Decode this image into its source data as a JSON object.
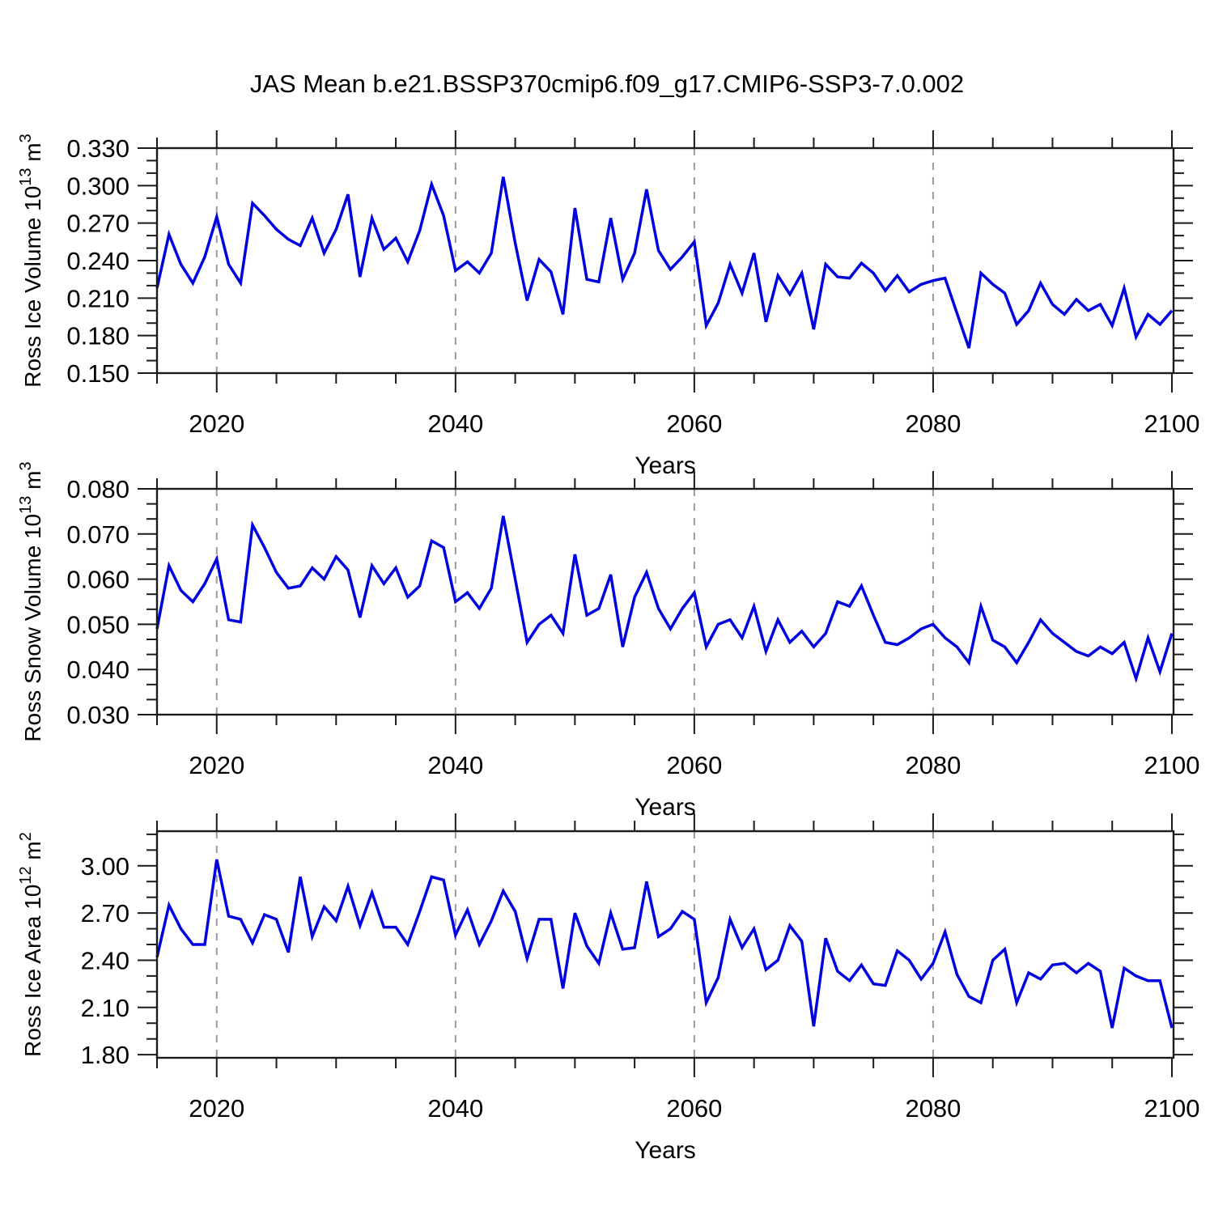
{
  "title": "JAS Mean b.e21.BSSP370cmip6.f09_g17.CMIP6-SSP3-7.0.002",
  "colors": {
    "line": "#0000e0",
    "grid": "#9a9a9a",
    "axis": "#1a1a1a",
    "text": "#000000"
  },
  "x_axis": {
    "label": "Years",
    "start": 2015,
    "end": 2100,
    "major_ticks": [
      2020,
      2040,
      2060,
      2080,
      2100
    ],
    "minor_step": 5,
    "gridline_years": [
      2020,
      2040,
      2060,
      2080
    ],
    "years": [
      2015,
      2016,
      2017,
      2018,
      2019,
      2020,
      2021,
      2022,
      2023,
      2024,
      2025,
      2026,
      2027,
      2028,
      2029,
      2030,
      2031,
      2032,
      2033,
      2034,
      2035,
      2036,
      2037,
      2038,
      2039,
      2040,
      2041,
      2042,
      2043,
      2044,
      2045,
      2046,
      2047,
      2048,
      2049,
      2050,
      2051,
      2052,
      2053,
      2054,
      2055,
      2056,
      2057,
      2058,
      2059,
      2060,
      2061,
      2062,
      2063,
      2064,
      2065,
      2066,
      2067,
      2068,
      2069,
      2070,
      2071,
      2072,
      2073,
      2074,
      2075,
      2076,
      2077,
      2078,
      2079,
      2080,
      2081,
      2082,
      2083,
      2084,
      2085,
      2086,
      2087,
      2088,
      2089,
      2090,
      2091,
      2092,
      2093,
      2094,
      2095,
      2096,
      2097,
      2098,
      2099,
      2100
    ]
  },
  "chart_data": [
    {
      "type": "line",
      "name": "ross-ice-volume",
      "ylabel_text": "Ross Ice Volume 10¹³ m³",
      "ylabel_parts": [
        {
          "t": "Ross Ice Volume 10"
        },
        {
          "t": "13",
          "sup": true
        },
        {
          "t": " m"
        },
        {
          "t": "3",
          "sup": true
        }
      ],
      "xlabel": "Years",
      "ylim": [
        0.15,
        0.33
      ],
      "ytick_values": [
        0.15,
        0.18,
        0.21,
        0.24,
        0.27,
        0.3,
        0.33
      ],
      "ytick_labels": [
        "0.150",
        "0.180",
        "0.210",
        "0.240",
        "0.270",
        "0.300",
        "0.330"
      ],
      "y_minor_step": 0.01,
      "values": [
        0.218,
        0.261,
        0.237,
        0.222,
        0.243,
        0.275,
        0.237,
        0.222,
        0.286,
        0.276,
        0.265,
        0.257,
        0.252,
        0.274,
        0.246,
        0.265,
        0.293,
        0.227,
        0.274,
        0.249,
        0.258,
        0.239,
        0.264,
        0.301,
        0.276,
        0.232,
        0.239,
        0.23,
        0.246,
        0.307,
        0.254,
        0.208,
        0.241,
        0.231,
        0.197,
        0.282,
        0.225,
        0.223,
        0.274,
        0.225,
        0.246,
        0.297,
        0.248,
        0.233,
        0.243,
        0.255,
        0.188,
        0.206,
        0.237,
        0.214,
        0.246,
        0.191,
        0.228,
        0.213,
        0.23,
        0.185,
        0.237,
        0.227,
        0.226,
        0.238,
        0.23,
        0.216,
        0.228,
        0.215,
        0.221,
        0.224,
        0.226,
        0.198,
        0.17,
        0.23,
        0.221,
        0.214,
        0.189,
        0.2,
        0.222,
        0.205,
        0.197,
        0.209,
        0.2,
        0.205,
        0.188,
        0.218,
        0.179,
        0.197,
        0.189,
        0.2
      ]
    },
    {
      "type": "line",
      "name": "ross-snow-volume",
      "ylabel_text": "Ross Snow Volume 10¹³ m³",
      "ylabel_parts": [
        {
          "t": "Ross Snow Volume 10"
        },
        {
          "t": "13",
          "sup": true
        },
        {
          "t": " m"
        },
        {
          "t": "3",
          "sup": true
        }
      ],
      "xlabel": "Years",
      "ylim": [
        0.03,
        0.08
      ],
      "ytick_values": [
        0.03,
        0.04,
        0.05,
        0.06,
        0.07,
        0.08
      ],
      "ytick_labels": [
        "0.030",
        "0.040",
        "0.050",
        "0.060",
        "0.070",
        "0.080"
      ],
      "y_minor_step": 0.0033333,
      "values": [
        0.049,
        0.063,
        0.0575,
        0.055,
        0.059,
        0.0645,
        0.051,
        0.0505,
        0.072,
        0.067,
        0.0615,
        0.058,
        0.0585,
        0.0625,
        0.06,
        0.065,
        0.062,
        0.0515,
        0.063,
        0.059,
        0.0625,
        0.056,
        0.0585,
        0.0685,
        0.067,
        0.055,
        0.057,
        0.0535,
        0.058,
        0.074,
        0.06,
        0.046,
        0.05,
        0.052,
        0.048,
        0.0655,
        0.052,
        0.0535,
        0.061,
        0.045,
        0.056,
        0.0615,
        0.0535,
        0.049,
        0.0535,
        0.057,
        0.045,
        0.05,
        0.051,
        0.047,
        0.054,
        0.044,
        0.051,
        0.046,
        0.0485,
        0.045,
        0.048,
        0.055,
        0.054,
        0.0585,
        0.052,
        0.046,
        0.0455,
        0.047,
        0.049,
        0.05,
        0.047,
        0.045,
        0.0415,
        0.054,
        0.0465,
        0.045,
        0.0415,
        0.046,
        0.051,
        0.048,
        0.046,
        0.044,
        0.043,
        0.045,
        0.0435,
        0.046,
        0.038,
        0.047,
        0.0395,
        0.048
      ]
    },
    {
      "type": "line",
      "name": "ross-ice-area",
      "ylabel_text": "Ross Ice Area 10¹² m²",
      "ylabel_parts": [
        {
          "t": "Ross Ice Area 10"
        },
        {
          "t": "12",
          "sup": true
        },
        {
          "t": " m"
        },
        {
          "t": "2",
          "sup": true
        }
      ],
      "xlabel": "Years",
      "ylim": [
        1.78,
        3.22
      ],
      "ytick_values": [
        1.8,
        2.1,
        2.4,
        2.7,
        3.0
      ],
      "ytick_labels": [
        "1.80",
        "2.10",
        "2.40",
        "2.70",
        "3.00"
      ],
      "y_minor_step": 0.1,
      "values": [
        2.42,
        2.75,
        2.6,
        2.5,
        2.5,
        3.04,
        2.68,
        2.66,
        2.51,
        2.69,
        2.66,
        2.45,
        2.93,
        2.55,
        2.74,
        2.65,
        2.87,
        2.62,
        2.83,
        2.61,
        2.61,
        2.5,
        2.71,
        2.93,
        2.91,
        2.56,
        2.72,
        2.5,
        2.65,
        2.84,
        2.71,
        2.41,
        2.66,
        2.66,
        2.22,
        2.7,
        2.49,
        2.38,
        2.7,
        2.47,
        2.48,
        2.9,
        2.55,
        2.6,
        2.71,
        2.66,
        2.13,
        2.29,
        2.66,
        2.48,
        2.6,
        2.34,
        2.4,
        2.62,
        2.52,
        1.98,
        2.54,
        2.33,
        2.27,
        2.37,
        2.25,
        2.24,
        2.46,
        2.4,
        2.28,
        2.38,
        2.58,
        2.31,
        2.17,
        2.13,
        2.4,
        2.47,
        2.13,
        2.32,
        2.28,
        2.37,
        2.38,
        2.32,
        2.38,
        2.33,
        1.97,
        2.35,
        2.3,
        2.27,
        2.27,
        1.97
      ]
    }
  ]
}
